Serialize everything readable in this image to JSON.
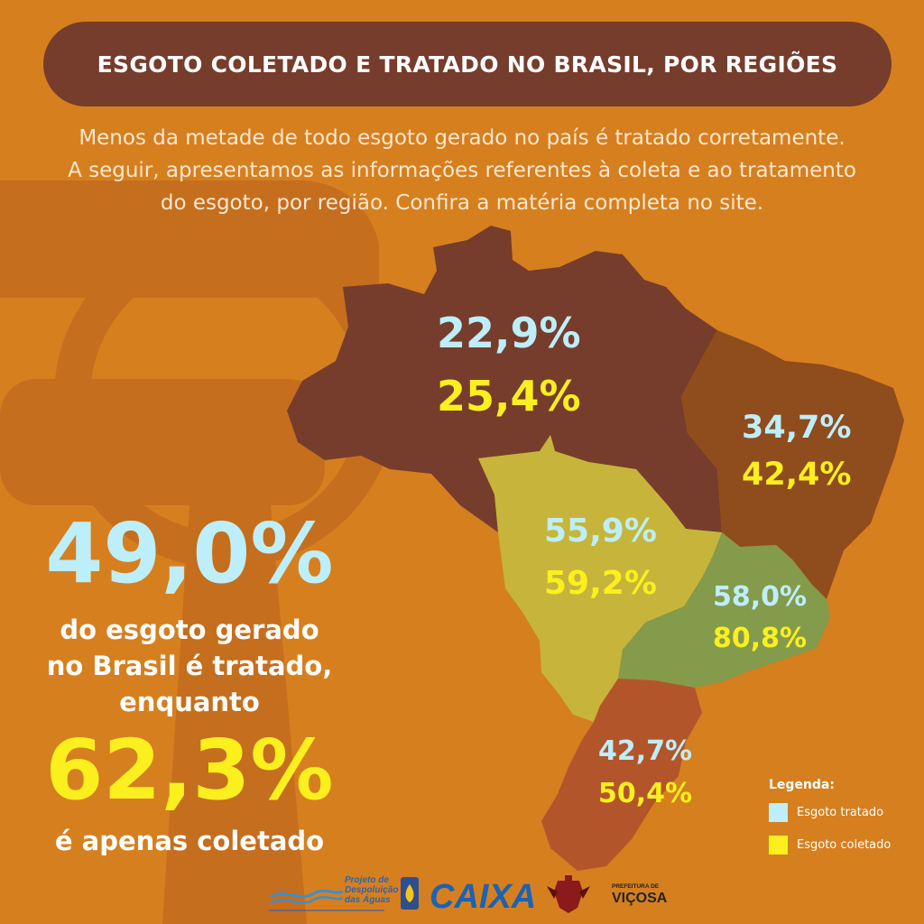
{
  "header": {
    "title": "ESGOTO COLETADO E TRATADO NO BRASIL, POR REGIÕES"
  },
  "intro": {
    "line1": "Menos da metade de todo esgoto gerado no país é tratado corretamente.",
    "line2": "A seguir, apresentamos as informações referentes à coleta e ao tratamento",
    "line3": "do esgoto, por região. Confira a matéria completa no site."
  },
  "regions": [
    {
      "id": "north",
      "tratado": "22,9%",
      "coletado": "25,4%",
      "color": "#763d2c"
    },
    {
      "id": "northeast",
      "tratado": "34,7%",
      "coletado": "42,4%",
      "color": "#8f4c1c"
    },
    {
      "id": "center-west",
      "tratado": "55,9%",
      "coletado": "59,2%",
      "color": "#c6b53a"
    },
    {
      "id": "southeast",
      "tratado": "58,0%",
      "coletado": "80,8%",
      "color": "#839b4b"
    },
    {
      "id": "south",
      "tratado": "42,7%",
      "coletado": "50,4%",
      "color": "#b3552b"
    }
  ],
  "summary": {
    "tratado_pct": "49,0%",
    "line1": "do esgoto gerado",
    "line2": "no Brasil é tratado,",
    "line3": "enquanto",
    "coletado_pct": "62,3%",
    "line4": "é apenas coletado"
  },
  "legend": {
    "title": "Legenda:",
    "items": [
      {
        "label": "Esgoto tratado",
        "color": "#bdeefc"
      },
      {
        "label": "Esgoto coletado",
        "color": "#fbef1e"
      }
    ]
  },
  "logos": {
    "projeto_line1": "Projeto de",
    "projeto_line2": "Despoluição",
    "projeto_line3": "das Águas",
    "caixa": "CAIXA",
    "prefeitura": "PREFEITURA DE",
    "vicosa": "VIÇOSA"
  },
  "colors": {
    "background": "#d67f1f",
    "title_bar": "#763d2c",
    "tratado": "#bdeefc",
    "coletado": "#fbef1e"
  }
}
